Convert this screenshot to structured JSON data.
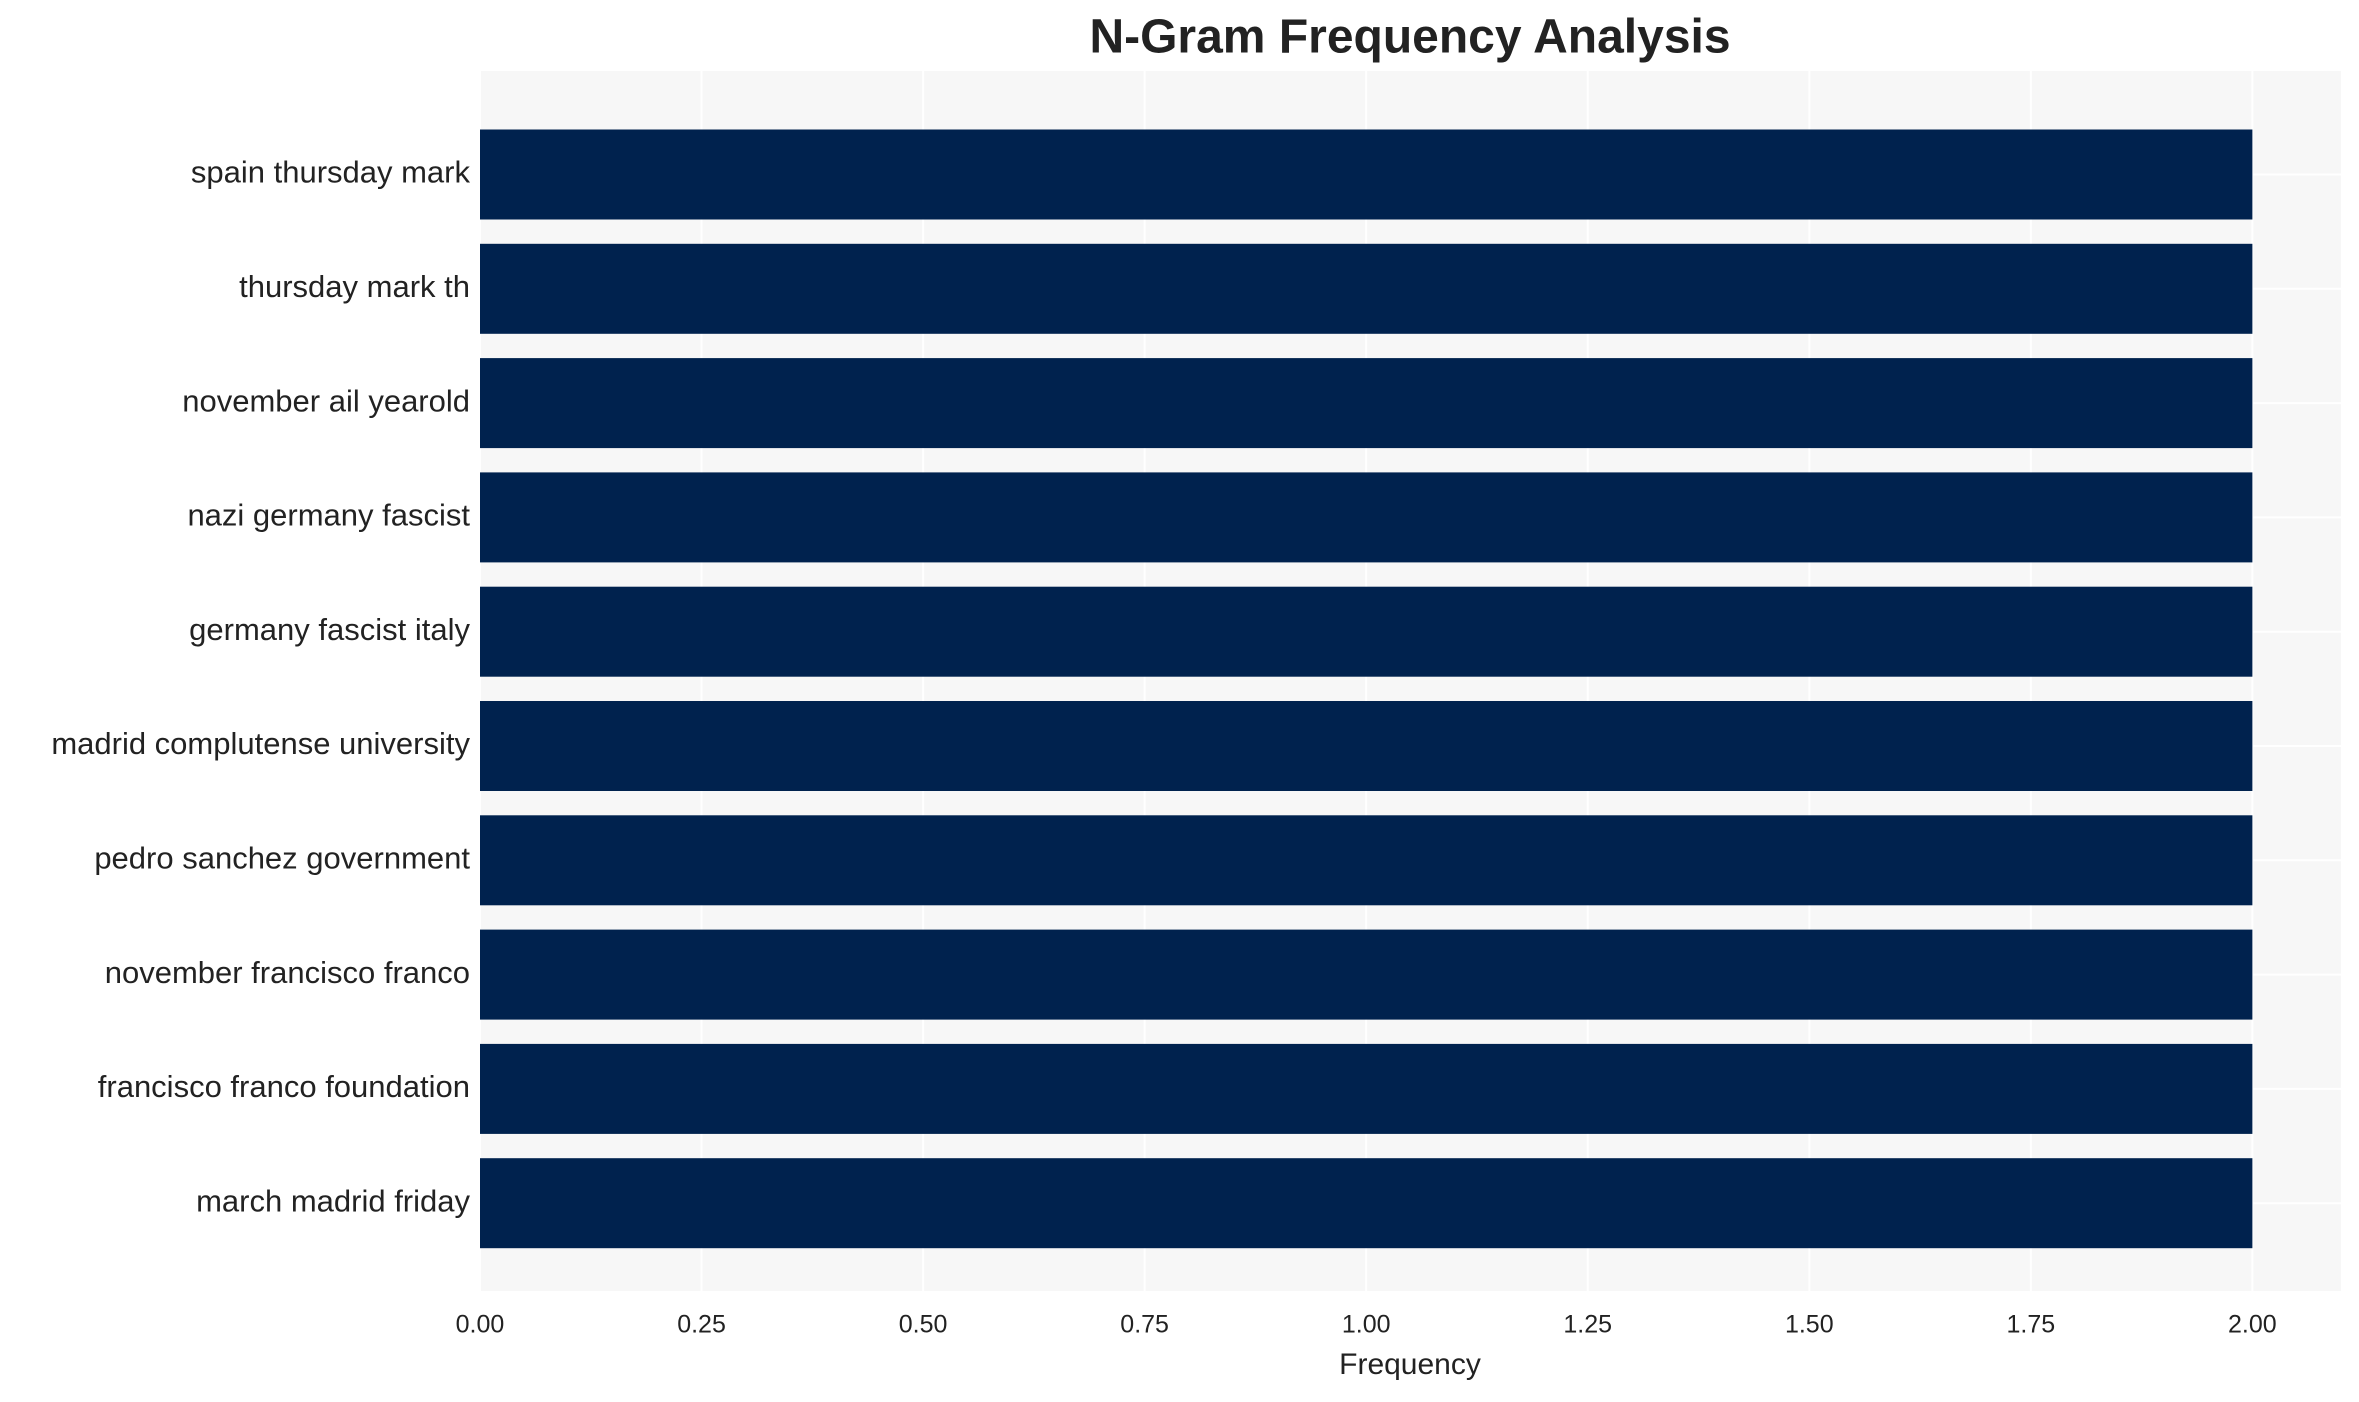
{
  "chart_data": {
    "type": "barh",
    "title": "N-Gram Frequency Analysis",
    "xlabel": "Frequency",
    "categories": [
      "spain thursday mark",
      "thursday mark th",
      "november ail yearold",
      "nazi germany fascist",
      "germany fascist italy",
      "madrid complutense university",
      "pedro sanchez government",
      "november francisco franco",
      "francisco franco foundation",
      "march madrid friday"
    ],
    "values": [
      2,
      2,
      2,
      2,
      2,
      2,
      2,
      2,
      2,
      2
    ],
    "color": "#00224e",
    "xlim": [
      0,
      2.1
    ],
    "xticks": [
      {
        "value": 0,
        "label": "0.00"
      },
      {
        "value": 0.25,
        "label": "0.25"
      },
      {
        "value": 0.5,
        "label": "0.50"
      },
      {
        "value": 0.75,
        "label": "0.75"
      },
      {
        "value": 1,
        "label": "1.00"
      },
      {
        "value": 1.25,
        "label": "1.25"
      },
      {
        "value": 1.5,
        "label": "1.50"
      },
      {
        "value": 1.75,
        "label": "1.75"
      },
      {
        "value": 2,
        "label": "2.00"
      }
    ],
    "grid": true
  }
}
